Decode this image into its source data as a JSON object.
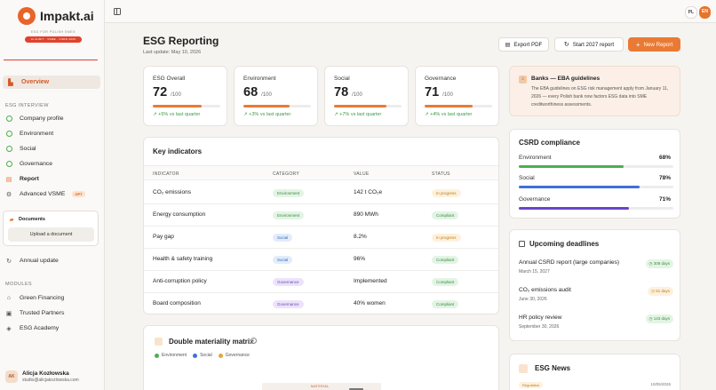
{
  "brand": {
    "name": "Impakt.ai",
    "tagline": "ESG FOR POLISH SMES",
    "badge": "AI AUDIT · VSME · CSRD 2025"
  },
  "language": {
    "pl": "PL",
    "en": "EN",
    "active": "EN"
  },
  "sidebar": {
    "overview": "Overview",
    "esg_interview_title": "ESG INTERVIEW",
    "interview_items": [
      "Company profile",
      "Environment",
      "Social",
      "Governance",
      "Report",
      "Advanced VSME"
    ],
    "opt_badge": "OPT",
    "documents": {
      "title": "Documents",
      "upload": "Upload a document"
    },
    "annual_update": "Annual update",
    "modules_title": "MODULES",
    "modules": [
      "Green Financing",
      "Trusted Partners",
      "ESG Academy"
    ]
  },
  "user": {
    "initials": "AK",
    "name": "Alicja Kozłowska",
    "email": "studio@alicjakozlowska.com"
  },
  "header": {
    "title": "ESG Reporting",
    "subtitle": "Last update: May 10, 2026",
    "export_label": "Export PDF",
    "start_label": "Start 2027 report",
    "new_label": "New Report"
  },
  "scores": [
    {
      "label": "ESG Overall",
      "value": "72",
      "max": "/100",
      "fill": 0.72,
      "change": "+5% vs last quarter"
    },
    {
      "label": "Environment",
      "value": "68",
      "max": "/100",
      "fill": 0.68,
      "change": "+3% vs last quarter"
    },
    {
      "label": "Social",
      "value": "78",
      "max": "/100",
      "fill": 0.78,
      "change": "+7% vs last quarter"
    },
    {
      "label": "Governance",
      "value": "71",
      "max": "/100",
      "fill": 0.71,
      "change": "+4% vs last quarter"
    }
  ],
  "key_indicators": {
    "title": "Key indicators",
    "headers": [
      "INDICATOR",
      "CATEGORY",
      "VALUE",
      "STATUS"
    ],
    "rows": [
      {
        "indicator": "CO₂ emissions",
        "category": "Environment",
        "value": "142 t CO₂e",
        "status": "In progress"
      },
      {
        "indicator": "Energy consumption",
        "category": "Environment",
        "value": "890 MWh",
        "status": "Compliant"
      },
      {
        "indicator": "Pay gap",
        "category": "Social",
        "value": "8.2%",
        "status": "In progress"
      },
      {
        "indicator": "Health & safety training",
        "category": "Social",
        "value": "96%",
        "status": "Compliant"
      },
      {
        "indicator": "Anti-corruption policy",
        "category": "Governance",
        "value": "Implemented",
        "status": "Compliant"
      },
      {
        "indicator": "Board composition",
        "category": "Governance",
        "value": "40% women",
        "status": "Compliant"
      }
    ]
  },
  "materiality": {
    "title": "Double materiality matrix",
    "legend": [
      "Environment",
      "Social",
      "Governance"
    ],
    "chart_label": "MATERIAL"
  },
  "banks": {
    "title": "Banks — EBA guidelines",
    "text": "The EBA guidelines on ESG risk management apply from January 11, 2026 — every Polish bank now factors ESG data into SME creditworthiness assessments."
  },
  "csrd": {
    "title": "CSRD compliance",
    "items": [
      {
        "label": "Environment",
        "pct": "68%",
        "fill": 0.68,
        "color": "#4caf50"
      },
      {
        "label": "Social",
        "pct": "78%",
        "fill": 0.78,
        "color": "#3f6fd8"
      },
      {
        "label": "Governance",
        "pct": "71%",
        "fill": 0.71,
        "color": "#6a45c9"
      }
    ]
  },
  "deadlines": {
    "title": "Upcoming deadlines",
    "items": [
      {
        "name": "Annual CSRD report (large companies)",
        "date": "March 15, 2027",
        "days": "308 days"
      },
      {
        "name": "CO₂ emissions audit",
        "date": "June 30, 2026",
        "days": "51 days"
      },
      {
        "name": "HR policy review",
        "date": "September 30, 2026",
        "days": "143 days"
      }
    ]
  },
  "news": {
    "title": "ESG News",
    "tag": "Regulation",
    "date": "10/05/2026"
  }
}
